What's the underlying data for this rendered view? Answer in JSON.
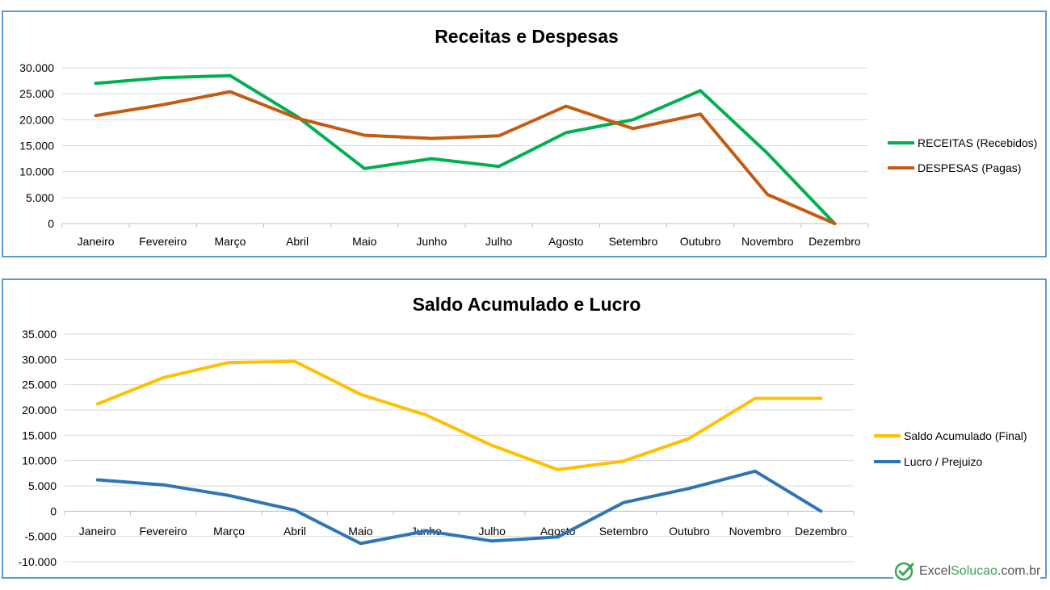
{
  "colors": {
    "receitas": "#00b050",
    "despesas": "#c55a11",
    "saldo": "#ffc000",
    "lucro": "#2e75b6",
    "border": "#5b9bd5"
  },
  "brand": {
    "icon": "check-circle-icon",
    "part1": "Excel",
    "part2": "Solucao",
    "part3": ".com.br"
  },
  "chart_data": [
    {
      "type": "line",
      "title": "Receitas e Despesas",
      "categories": [
        "Janeiro",
        "Fevereiro",
        "Março",
        "Abril",
        "Maio",
        "Junho",
        "Julho",
        "Agosto",
        "Setembro",
        "Outubro",
        "Novembro",
        "Dezembro"
      ],
      "series": [
        {
          "name": "RECEITAS (Recebidos)",
          "values": [
            27000,
            28100,
            28500,
            20600,
            10600,
            12500,
            11000,
            17500,
            20000,
            25600,
            13500,
            0
          ]
        },
        {
          "name": "DESPESAS (Pagas)",
          "values": [
            20800,
            22900,
            25400,
            20300,
            17000,
            16400,
            16900,
            22600,
            18300,
            21100,
            5600,
            0
          ]
        }
      ],
      "ylim": [
        0,
        30000
      ],
      "yticks": [
        "0",
        "5.000",
        "10.000",
        "15.000",
        "20.000",
        "25.000",
        "30.000"
      ],
      "grid": true,
      "legend": "right"
    },
    {
      "type": "line",
      "title": "Saldo Acumulado e Lucro",
      "categories": [
        "Janeiro",
        "Fevereiro",
        "Março",
        "Abril",
        "Maio",
        "Junho",
        "Julho",
        "Agosto",
        "Setembro",
        "Outubro",
        "Novembro",
        "Dezembro"
      ],
      "series": [
        {
          "name": "Saldo Acumulado (Final)",
          "values": [
            21200,
            26400,
            29400,
            29600,
            23100,
            19000,
            13000,
            8200,
            9900,
            14400,
            22300,
            22300
          ]
        },
        {
          "name": "Lucro / Prejuizo",
          "values": [
            6200,
            5200,
            3100,
            200,
            -6400,
            -3900,
            -5900,
            -5100,
            1700,
            4500,
            7900,
            0
          ]
        }
      ],
      "ylim": [
        -10000,
        35000
      ],
      "yticks": [
        "-10.000",
        "-5.000",
        "0",
        "5.000",
        "10.000",
        "15.000",
        "20.000",
        "25.000",
        "30.000",
        "35.000"
      ],
      "grid": true,
      "legend": "right"
    }
  ]
}
